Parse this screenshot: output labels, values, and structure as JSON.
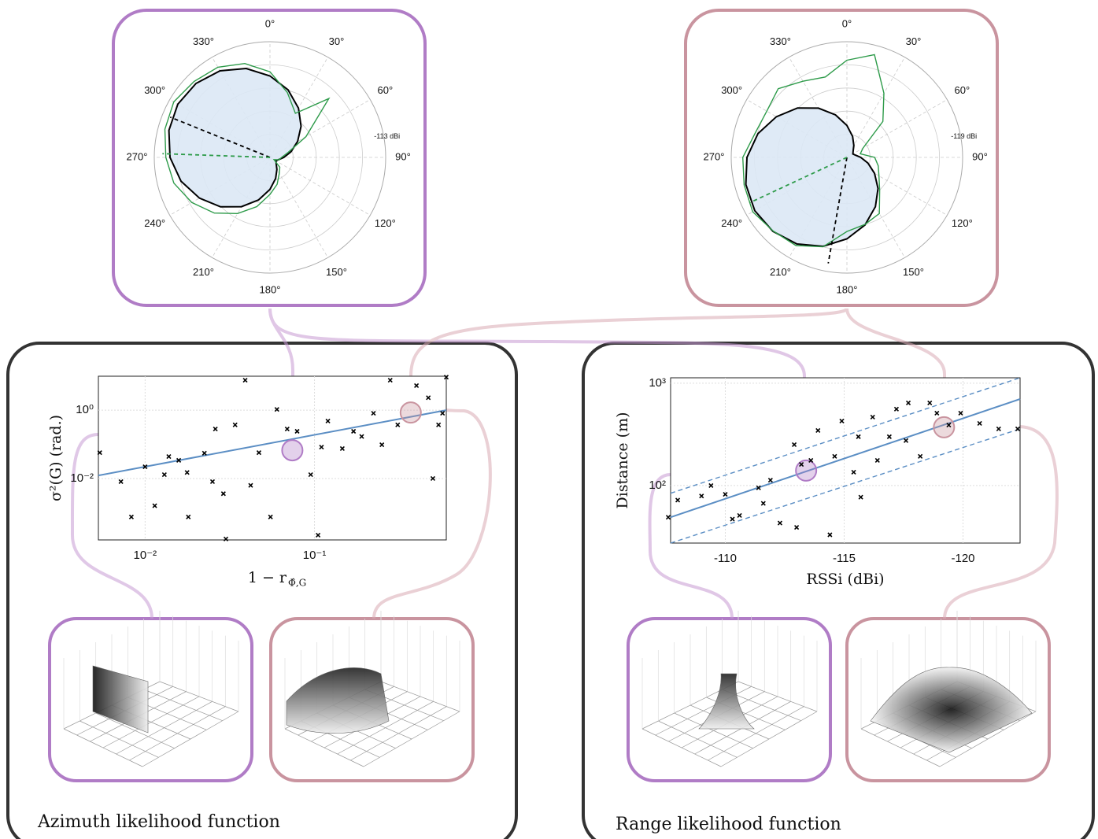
{
  "chart_data": [
    {
      "type": "polar",
      "frame_color": "#b07cc6",
      "theta": [
        0,
        15,
        30,
        45,
        60,
        75,
        90,
        105,
        120,
        135,
        150,
        165,
        180,
        195,
        210,
        225,
        240,
        255,
        270,
        285,
        300,
        315,
        330,
        345
      ],
      "thetaticks": [
        {
          "value": 0,
          "label": "0°"
        },
        {
          "value": 30,
          "label": "30°"
        },
        {
          "value": 60,
          "label": "60°"
        },
        {
          "value": 90,
          "label": "90°"
        },
        {
          "value": 120,
          "label": "120°"
        },
        {
          "value": 150,
          "label": "150°"
        },
        {
          "value": 180,
          "label": "180°"
        },
        {
          "value": 210,
          "label": "210°"
        },
        {
          "value": 240,
          "label": "240°"
        },
        {
          "value": 270,
          "label": "270°"
        },
        {
          "value": 300,
          "label": "300°"
        },
        {
          "value": 330,
          "label": "330°"
        }
      ],
      "rlim": [
        -138,
        -113
      ],
      "rticks": [
        {
          "value": -113,
          "label": "-113 dBi"
        }
      ],
      "series": [
        {
          "color": "#000000",
          "fill": "#dce8f5",
          "values": [
            -120.4,
            -122.9,
            -125.7,
            -128.5,
            -131.1,
            -133.3,
            -135.0,
            -136.1,
            -136.5,
            -136.1,
            -135.0,
            -133.3,
            -131.1,
            -128.5,
            -125.7,
            -122.9,
            -120.4,
            -118.1,
            -116.4,
            -115.4,
            -115.0,
            -115.4,
            -116.4,
            -118.1
          ]
        },
        {
          "color": "#2e9b4a",
          "values": [
            -119.5,
            -123.5,
            -127,
            -120,
            -129,
            -134,
            -135.5,
            -136,
            -137,
            -135,
            -134,
            -132,
            -130,
            -127,
            -124,
            -121,
            -118.5,
            -116.5,
            -115.5,
            -114.5,
            -114,
            -114.8,
            -115.5,
            -117
          ]
        }
      ],
      "bearings": [
        {
          "color": "#000000",
          "value": 292
        },
        {
          "color": "#2e9b4a",
          "value": 272
        }
      ]
    },
    {
      "type": "polar",
      "frame_color": "#c9949f",
      "theta": [
        0,
        15,
        30,
        45,
        60,
        75,
        90,
        105,
        120,
        135,
        150,
        165,
        180,
        195,
        210,
        225,
        240,
        255,
        270,
        285,
        300,
        315,
        330,
        345
      ],
      "thetaticks": [
        {
          "value": 0,
          "label": "0°"
        },
        {
          "value": 30,
          "label": "30°"
        },
        {
          "value": 60,
          "label": "60°"
        },
        {
          "value": 90,
          "label": "90°"
        },
        {
          "value": 120,
          "label": "120°"
        },
        {
          "value": 150,
          "label": "150°"
        },
        {
          "value": 180,
          "label": "180°"
        },
        {
          "value": 210,
          "label": "210°"
        },
        {
          "value": 240,
          "label": "240°"
        },
        {
          "value": 270,
          "label": "270°"
        },
        {
          "value": 300,
          "label": "300°"
        },
        {
          "value": 330,
          "label": "330°"
        }
      ],
      "rlim": [
        -144,
        -119
      ],
      "rticks": [
        {
          "value": -119,
          "label": "-119 dBi"
        }
      ],
      "series": [
        {
          "color": "#000000",
          "fill": "#dce8f5",
          "values": [
            -137.1,
            -139.3,
            -141.0,
            -142.1,
            -142.5,
            -142.1,
            -141.0,
            -139.3,
            -137.1,
            -134.5,
            -131.7,
            -128.9,
            -126.4,
            -124.1,
            -122.4,
            -121.4,
            -121.0,
            -121.4,
            -122.4,
            -124.1,
            -126.4,
            -128.9,
            -131.7,
            -134.5
          ]
        },
        {
          "color": "#2e9b4a",
          "values": [
            -123,
            -121,
            -128,
            -133,
            -140,
            -141,
            -138,
            -137,
            -136,
            -134,
            -130,
            -129,
            -128,
            -124,
            -122,
            -121.5,
            -120.5,
            -121,
            -121.5,
            -123.5,
            -124,
            -123,
            -125,
            -126
          ]
        }
      ],
      "bearings": [
        {
          "color": "#000000",
          "value": 190
        },
        {
          "color": "#2e9b4a",
          "value": 245
        }
      ]
    },
    {
      "type": "scatter",
      "xlog": true,
      "ylog": true,
      "grid": true,
      "color": "#000000",
      "xlim": [
        0.0053,
        0.6
      ],
      "ylim": [
        0.00016,
        9.8
      ],
      "xticks": [
        {
          "value": 0.01,
          "label": "10⁻²"
        },
        {
          "value": 0.1,
          "label": "10⁻¹"
        }
      ],
      "yticks": [
        {
          "value": 0.01,
          "label": "10⁻²"
        },
        {
          "value": 1,
          "label": "10⁰"
        }
      ],
      "xlabel": "1 − r",
      "xlabel_sub": "Φ̂,G",
      "ylabel": "σ²(G) (rad.)",
      "x": [
        0.0054,
        0.0072,
        0.0083,
        0.01,
        0.0114,
        0.013,
        0.0138,
        0.0158,
        0.0177,
        0.018,
        0.0224,
        0.025,
        0.026,
        0.029,
        0.03,
        0.034,
        0.039,
        0.042,
        0.047,
        0.055,
        0.06,
        0.069,
        0.079,
        0.095,
        0.105,
        0.11,
        0.12,
        0.146,
        0.17,
        0.19,
        0.223,
        0.25,
        0.28,
        0.31,
        0.4,
        0.47,
        0.5,
        0.54,
        0.57,
        0.6
      ],
      "values": [
        0.057,
        0.0081,
        0.00075,
        0.022,
        0.0016,
        0.013,
        0.044,
        0.034,
        0.015,
        0.00075,
        0.055,
        0.0081,
        0.28,
        0.0036,
        0.00017,
        0.37,
        7.5,
        0.0063,
        0.057,
        0.00075,
        1.05,
        0.28,
        0.24,
        0.013,
        0.00022,
        0.083,
        0.48,
        0.075,
        0.24,
        0.17,
        0.81,
        0.097,
        7.5,
        0.37,
        5.2,
        2.3,
        0.01,
        0.37,
        0.81,
        9.2
      ],
      "fit_lines": [
        {
          "color": "#5b8ec4",
          "dashed": false,
          "x": [
            0.0053,
            0.6
          ],
          "values": [
            0.0123,
            1.0
          ]
        }
      ],
      "highlights": [
        {
          "color": "#b07cc6",
          "x": 0.074,
          "value": 0.067
        },
        {
          "color": "#c9949f",
          "x": 0.37,
          "value": 0.85
        }
      ]
    },
    {
      "type": "scatter",
      "xlog": false,
      "ylog": true,
      "grid": true,
      "color": "#000000",
      "xlim": [
        -107.7,
        -122.4
      ],
      "ylim": [
        27.4,
        1130
      ],
      "xticks": [
        -110,
        -115,
        -120
      ],
      "yticks": [
        {
          "value": 100,
          "label": "10²"
        },
        {
          "value": 1000,
          "label": "10³"
        }
      ],
      "xlabel": "RSSi (dBi)",
      "ylabel": "Distance (m)",
      "x": [
        -107.6,
        -108.0,
        -109.0,
        -109.4,
        -110,
        -110.3,
        -110.6,
        -111.4,
        -111.6,
        -111.9,
        -112.3,
        -112.9,
        -113.0,
        -113.2,
        -113.6,
        -113.9,
        -114.4,
        -114.6,
        -114.9,
        -115.4,
        -115.6,
        -115.7,
        -116.2,
        -116.4,
        -116.9,
        -117.2,
        -117.6,
        -117.7,
        -118.2,
        -118.6,
        -118.9,
        -119.4,
        -119.9,
        -120.7,
        -121.5,
        -122.3
      ],
      "values": [
        49,
        72,
        79,
        100,
        82,
        47,
        51,
        95,
        67,
        113,
        43,
        251,
        39,
        161,
        176,
        345,
        33,
        193,
        427,
        135,
        300,
        77,
        467,
        176,
        300,
        558,
        275,
        642,
        193,
        642,
        510,
        390,
        510,
        405,
        358,
        358
      ],
      "fit_lines": [
        {
          "color": "#5b8ec4",
          "dashed": false,
          "x": [
            -107.7,
            -122.4
          ],
          "values": [
            49,
            701
          ]
        },
        {
          "color": "#5b8ec4",
          "dashed": true,
          "x": [
            -107.7,
            -122.4
          ],
          "values": [
            84,
            1130
          ]
        },
        {
          "color": "#5b8ec4",
          "dashed": true,
          "x": [
            -107.7,
            -122.4
          ],
          "values": [
            27.4,
            358
          ]
        }
      ],
      "highlights": [
        {
          "color": "#b07cc6",
          "x": -113.4,
          "value": 140
        },
        {
          "color": "#c9949f",
          "x": -119.2,
          "value": 371
        }
      ]
    }
  ],
  "panels": [
    {
      "label": "Azimuth likelihood function"
    },
    {
      "label": "Range likelihood function"
    }
  ]
}
